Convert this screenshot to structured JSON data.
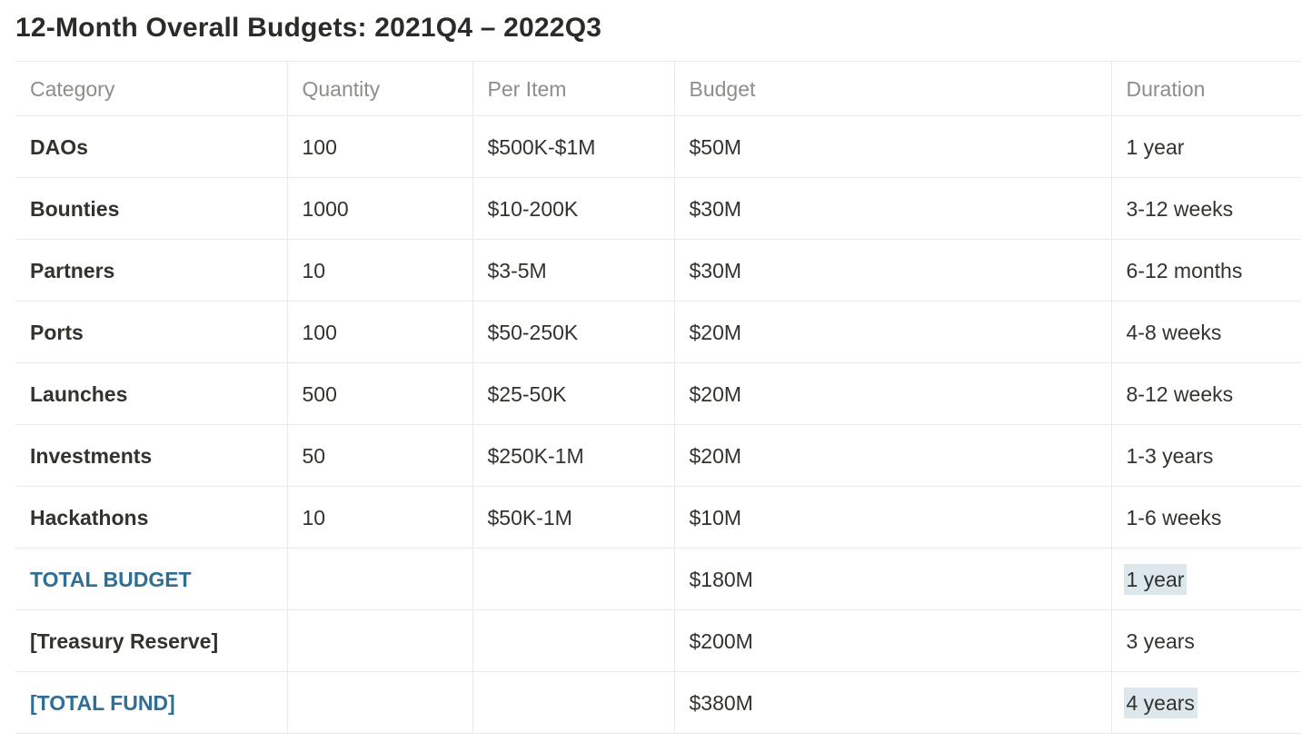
{
  "title": "12-Month Overall Budgets: 2021Q4 – 2022Q3",
  "colors": {
    "accent_blue_text": "#2f6e96",
    "duration_highlight_bg": "#dce7ee",
    "table_border": "#e9e9e7",
    "header_text": "#8e8d89",
    "body_text": "#34322d"
  },
  "table": {
    "columns": [
      {
        "label": "Category"
      },
      {
        "label": "Quantity"
      },
      {
        "label": "Per Item"
      },
      {
        "label": "Budget"
      },
      {
        "label": "Duration"
      }
    ],
    "rows": [
      {
        "category": "DAOs",
        "quantity": "100",
        "per_item": "$500K-$1M",
        "budget": "$50M",
        "duration": "1 year",
        "category_color": "default",
        "duration_highlight": false
      },
      {
        "category": "Bounties",
        "quantity": "1000",
        "per_item": "$10-200K",
        "budget": "$30M",
        "duration": "3-12 weeks",
        "category_color": "default",
        "duration_highlight": false
      },
      {
        "category": "Partners",
        "quantity": "10",
        "per_item": "$3-5M",
        "budget": "$30M",
        "duration": "6-12 months",
        "category_color": "default",
        "duration_highlight": false
      },
      {
        "category": "Ports",
        "quantity": "100",
        "per_item": "$50-250K",
        "budget": "$20M",
        "duration": "4-8 weeks",
        "category_color": "default",
        "duration_highlight": false
      },
      {
        "category": "Launches",
        "quantity": "500",
        "per_item": "$25-50K",
        "budget": "$20M",
        "duration": "8-12 weeks",
        "category_color": "default",
        "duration_highlight": false
      },
      {
        "category": "Investments",
        "quantity": "50",
        "per_item": "$250K-1M",
        "budget": "$20M",
        "duration": "1-3 years",
        "category_color": "default",
        "duration_highlight": false
      },
      {
        "category": "Hackathons",
        "quantity": "10",
        "per_item": "$50K-1M",
        "budget": "$10M",
        "duration": "1-6 weeks",
        "category_color": "default",
        "duration_highlight": false
      },
      {
        "category": "TOTAL BUDGET",
        "quantity": "",
        "per_item": "",
        "budget": "$180M",
        "duration": "1 year",
        "category_color": "blue",
        "duration_highlight": true
      },
      {
        "category": "[Treasury Reserve]",
        "quantity": "",
        "per_item": "",
        "budget": "$200M",
        "duration": "3 years",
        "category_color": "default",
        "duration_highlight": false
      },
      {
        "category": "[TOTAL FUND]",
        "quantity": "",
        "per_item": "",
        "budget": "$380M",
        "duration": "4 years",
        "category_color": "blue",
        "duration_highlight": true
      }
    ]
  }
}
